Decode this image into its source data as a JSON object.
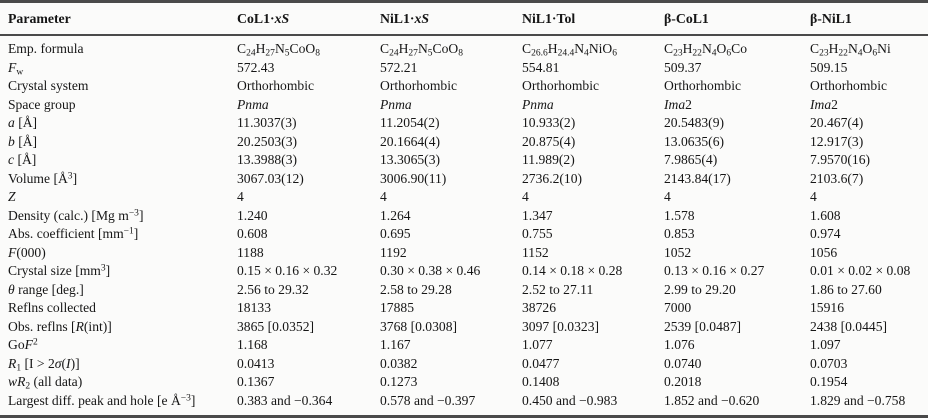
{
  "table": {
    "columns": [
      {
        "label": "Parameter",
        "bold": false
      },
      {
        "label": "<b>CoL1</b>·<i>xS</i>",
        "bold": true
      },
      {
        "label": "<b>NiL1</b>·<i>xS</i>",
        "bold": true
      },
      {
        "label": "<b>NiL1</b>·Tol",
        "bold": true
      },
      {
        "label": "<b>β-CoL1</b>",
        "bold": true
      },
      {
        "label": "<b>β-NiL1</b>",
        "bold": true
      }
    ],
    "rows": [
      {
        "param": "Emp. formula",
        "values": [
          "C<sub>24</sub>H<sub>27</sub>N<sub>5</sub>CoO<sub>8</sub>",
          "C<sub>24</sub>H<sub>27</sub>N<sub>5</sub>CoO<sub>8</sub>",
          "C<sub>26.6</sub>H<sub>24.4</sub>N<sub>4</sub>NiO<sub>6</sub>",
          "C<sub>23</sub>H<sub>22</sub>N<sub>4</sub>O<sub>6</sub>Co",
          "C<sub>23</sub>H<sub>22</sub>N<sub>4</sub>O<sub>6</sub>Ni"
        ]
      },
      {
        "param": "<i>F</i><sub>w</sub>",
        "values": [
          "572.43",
          "572.21",
          "554.81",
          "509.37",
          "509.15"
        ]
      },
      {
        "param": "Crystal system",
        "values": [
          "Orthorhombic",
          "Orthorhombic",
          "Orthorhombic",
          "Orthorhombic",
          "Orthorhombic"
        ]
      },
      {
        "param": "Space group",
        "values": [
          "<i>Pnma</i>",
          "<i>Pnma</i>",
          "<i>Pnma</i>",
          "<i>Ima</i>2",
          "<i>Ima</i>2"
        ]
      },
      {
        "param": "<i>a</i> [Å]",
        "values": [
          "11.3037(3)",
          "11.2054(2)",
          "10.933(2)",
          "20.5483(9)",
          "20.467(4)"
        ]
      },
      {
        "param": "<i>b</i> [Å]",
        "values": [
          "20.2503(3)",
          "20.1664(4)",
          "20.875(4)",
          "13.0635(6)",
          "12.917(3)"
        ]
      },
      {
        "param": "<i>c</i> [Å]",
        "values": [
          "13.3988(3)",
          "13.3065(3)",
          "11.989(2)",
          "7.9865(4)",
          "7.9570(16)"
        ]
      },
      {
        "param": "Volume [Å<sup>3</sup>]",
        "values": [
          "3067.03(12)",
          "3006.90(11)",
          "2736.2(10)",
          "2143.84(17)",
          "2103.6(7)"
        ]
      },
      {
        "param": "<i>Z</i>",
        "values": [
          "4",
          "4",
          "4",
          "4",
          "4"
        ]
      },
      {
        "param": "Density (calc.) [Mg m<sup>−3</sup>]",
        "values": [
          "1.240",
          "1.264",
          "1.347",
          "1.578",
          "1.608"
        ]
      },
      {
        "param": "Abs. coefficient [mm<sup>−1</sup>]",
        "values": [
          "0.608",
          "0.695",
          "0.755",
          "0.853",
          "0.974"
        ]
      },
      {
        "param": "<i>F</i>(000)",
        "values": [
          "1188",
          "1192",
          "1152",
          "1052",
          "1056"
        ]
      },
      {
        "param": "Crystal size [mm<sup>3</sup>]",
        "values": [
          "0.15 × 0.16 × 0.32",
          "0.30 × 0.38 × 0.46",
          "0.14 × 0.18 × 0.28",
          "0.13 × 0.16 × 0.27",
          "0.01 × 0.02 × 0.08"
        ]
      },
      {
        "param": "<i>θ</i> range [deg.]",
        "values": [
          "2.56 to 29.32",
          "2.58 to 29.28",
          "2.52 to 27.11",
          "2.99 to 29.20",
          "1.86 to 27.60"
        ]
      },
      {
        "param": "Reflns collected",
        "values": [
          "18133",
          "17885",
          "38726",
          "7000",
          "15916"
        ]
      },
      {
        "param": "Obs. reflns [<i>R</i>(int)]",
        "values": [
          "3865 [0.0352]",
          "3768 [0.0308]",
          "3097 [0.0323]",
          "2539 [0.0487]",
          "2438 [0.0445]"
        ]
      },
      {
        "param": "Go<i>F</i><sup>2</sup>",
        "values": [
          "1.168",
          "1.167",
          "1.077",
          "1.076",
          "1.097"
        ]
      },
      {
        "param": "<i>R</i><sub>1</sub> [I &gt; 2<i>σ</i>(<i>I</i>)]",
        "values": [
          "0.0413",
          "0.0382",
          "0.0477",
          "0.0740",
          "0.0703"
        ]
      },
      {
        "param": "<i>wR</i><sub>2</sub> (all data)",
        "values": [
          "0.1367",
          "0.1273",
          "0.1408",
          "0.2018",
          "0.1954"
        ]
      },
      {
        "param": "Largest diff. peak and hole [e Å<sup>−3</sup>]",
        "values": [
          "0.383 and −0.364",
          "0.578 and −0.397",
          "0.450 and −0.983",
          "1.852 and −0.620",
          "1.829 and −0.758"
        ]
      }
    ]
  }
}
